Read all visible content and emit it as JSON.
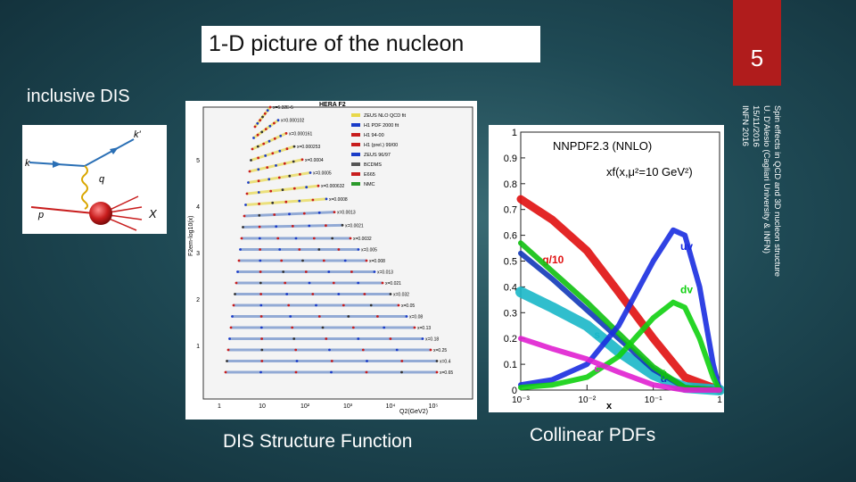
{
  "slide": {
    "title": "1-D picture of the nucleon",
    "number": "5",
    "subtitle": "inclusive DIS",
    "footer_lines": [
      "Spin effects in QCD and 3D nucleon structure",
      "U. D'Alesio (Cagliari University & INFN)",
      "15/11/2016",
      "INFN 2016"
    ],
    "caption_left": "DIS Structure Function",
    "caption_right": "Collinear PDFs"
  },
  "diagram": {
    "labels": {
      "k_out": "k'",
      "k_in": "k",
      "q": "q",
      "p": "p",
      "X": "X"
    },
    "colors": {
      "lepton": "#2a6fb5",
      "photon": "#d9a600",
      "proton": "#c81d1d",
      "arrows": "#c81d1d"
    }
  },
  "hera_chart": {
    "title": "HERA F2",
    "ylabel": "F2em-log10(x)",
    "xlabel": "Q2(GeV2)",
    "y_ticks": [
      "1",
      "2",
      "3",
      "4",
      "5"
    ],
    "x_ticks": [
      "1",
      "10",
      "10²",
      "10³",
      "10⁴",
      "10⁵"
    ],
    "legend": [
      "ZEUS NLO QCD fit",
      "H1 PDF 2000 fit",
      "H1 94-00",
      "H1 (prel.) 99/00",
      "ZEUS 96/97",
      "BCDMS",
      "E665",
      "NMC"
    ],
    "bin_labels": [
      "x=6.32E-5",
      "x=0.000102",
      "x=0.000161",
      "x=0.000253",
      "x=0.0004",
      "x=0.0005",
      "x=0.000632",
      "x=0.0008",
      "x=0.0013",
      "x=0.0021",
      "x=0.0032",
      "x=0.005",
      "x=0.008",
      "x=0.013",
      "x=0.021",
      "x=0.032",
      "x=0.05",
      "x=0.08",
      "x=0.13",
      "x=0.18",
      "x=0.25",
      "x=0.4",
      "x=0.65"
    ]
  },
  "chart_data": {
    "type": "line",
    "title": "NNPDF2.3 (NNLO)",
    "annotation": "xf(x,μ²=10 GeV²)",
    "xlabel": "x",
    "xscale": "log",
    "xlim": [
      0.001,
      1
    ],
    "ylim": [
      0,
      1
    ],
    "x_tick_labels": [
      "10⁻³",
      "10⁻²",
      "10⁻¹",
      "1"
    ],
    "y_tick_labels": [
      "0",
      "0.1",
      "0.2",
      "0.3",
      "0.4",
      "0.5",
      "0.6",
      "0.7",
      "0.8",
      "0.9",
      "1"
    ],
    "series": [
      {
        "name": "g/10",
        "color": "#e01010",
        "x": [
          0.001,
          0.003,
          0.01,
          0.03,
          0.1,
          0.3,
          1
        ],
        "values": [
          0.74,
          0.66,
          0.54,
          0.38,
          0.2,
          0.05,
          0.0
        ]
      },
      {
        "name": "s",
        "color": "#19b7c8",
        "x": [
          0.001,
          0.003,
          0.01,
          0.03,
          0.1,
          0.3,
          1
        ],
        "values": [
          0.38,
          0.32,
          0.25,
          0.15,
          0.06,
          0.01,
          0.0
        ]
      },
      {
        "name": "ū",
        "color": "#1238b8",
        "x": [
          0.001,
          0.003,
          0.01,
          0.03,
          0.1,
          0.3,
          1
        ],
        "values": [
          0.53,
          0.43,
          0.31,
          0.2,
          0.08,
          0.01,
          0.0
        ]
      },
      {
        "name": "d̄",
        "color": "#10c010",
        "x": [
          0.001,
          0.003,
          0.01,
          0.03,
          0.1,
          0.3,
          1
        ],
        "values": [
          0.57,
          0.46,
          0.34,
          0.22,
          0.09,
          0.01,
          0.0
        ]
      },
      {
        "name": "uv",
        "color": "#1a2ee0",
        "x": [
          0.001,
          0.003,
          0.01,
          0.03,
          0.1,
          0.2,
          0.3,
          0.5,
          0.8,
          1
        ],
        "values": [
          0.02,
          0.04,
          0.1,
          0.25,
          0.5,
          0.62,
          0.6,
          0.4,
          0.1,
          0.0
        ]
      },
      {
        "name": "dv",
        "color": "#10d010",
        "x": [
          0.001,
          0.003,
          0.01,
          0.03,
          0.1,
          0.2,
          0.3,
          0.5,
          0.8,
          1
        ],
        "values": [
          0.01,
          0.02,
          0.05,
          0.13,
          0.28,
          0.34,
          0.32,
          0.2,
          0.05,
          0.0
        ]
      },
      {
        "name": "c",
        "color": "#e020d0",
        "x": [
          0.001,
          0.003,
          0.01,
          0.03,
          0.1,
          0.3,
          1
        ],
        "values": [
          0.2,
          0.16,
          0.12,
          0.07,
          0.02,
          0.0,
          0.0
        ]
      }
    ]
  }
}
